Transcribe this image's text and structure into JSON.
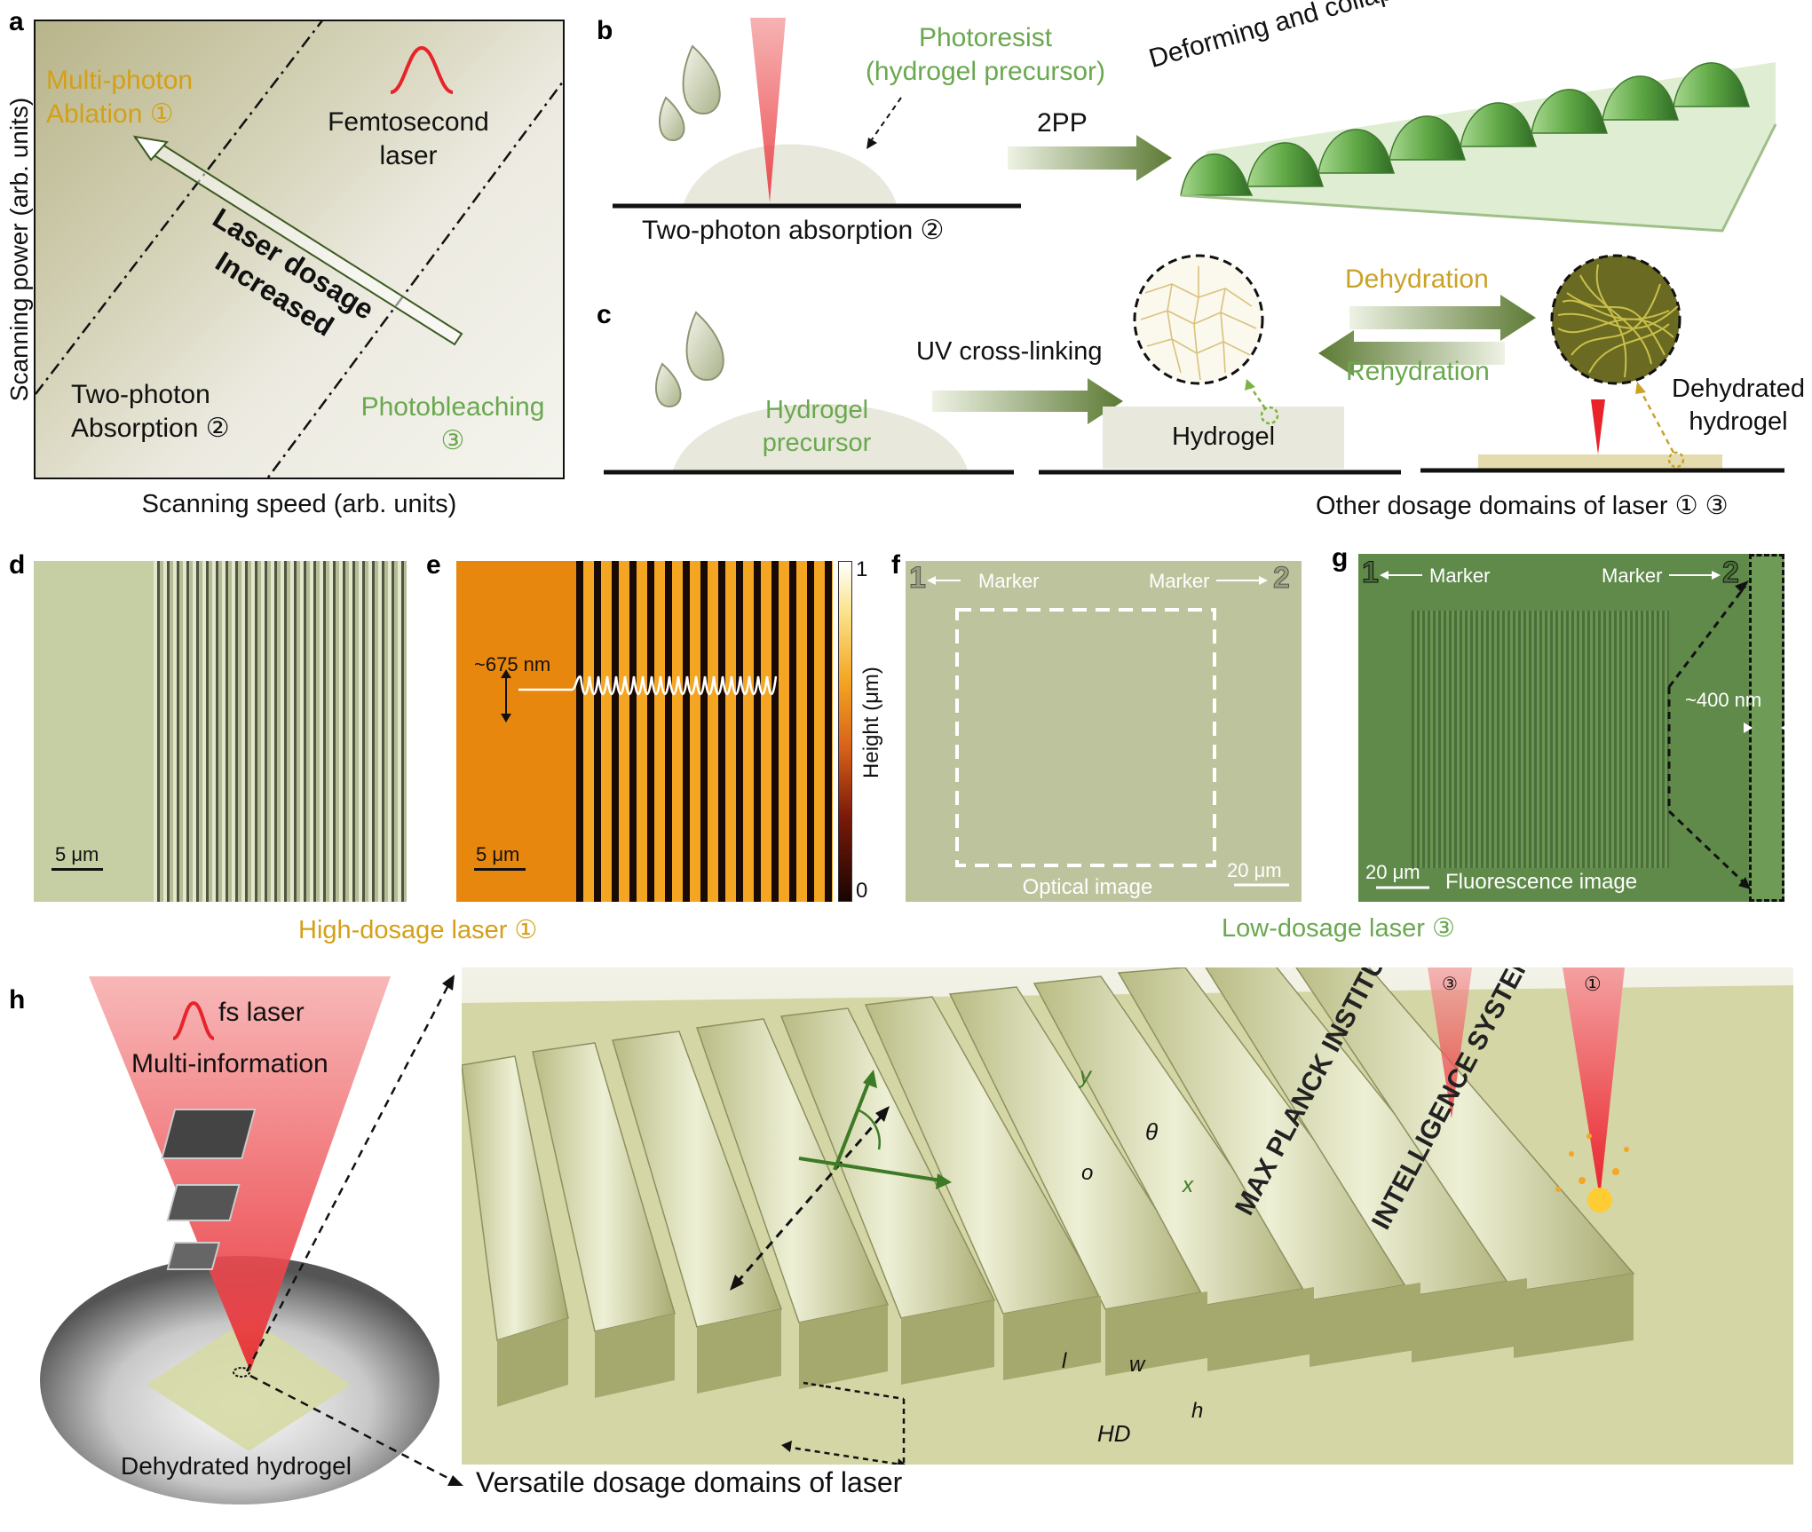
{
  "panel_letters": {
    "a": "a",
    "b": "b",
    "c": "c",
    "d": "d",
    "e": "e",
    "f": "f",
    "g": "g",
    "h": "h"
  },
  "panel_a": {
    "multi_photon_line1": "Multi-photon",
    "multi_photon_line2": "Ablation ①",
    "femtosecond_line1": "Femtosecond",
    "femtosecond_line2": "laser",
    "dosage_line1": "Laser dosage",
    "dosage_line2": "Increased",
    "two_photon_line1": "Two-photon",
    "two_photon_line2": "Absorption ②",
    "photobleaching_line1": "Photobleaching",
    "photobleaching_line2": "③",
    "ylabel": "Scanning power (arb. units)",
    "xlabel": "Scanning speed (arb. units)"
  },
  "panel_b": {
    "photoresist_line1": "Photoresist",
    "photoresist_line2": "(hydrogel precursor)",
    "arrow_label": "2PP",
    "caption": "Two-photon absorption ②",
    "collapse_label": "Deforming and collapsing"
  },
  "panel_c": {
    "uv_label": "UV cross-linking",
    "precursor_line1": "Hydrogel",
    "precursor_line2": "precursor",
    "hydrogel_label": "Hydrogel",
    "dehydration_label": "Dehydration",
    "rehydration_label": "Rehydration",
    "dehydrated_line1": "Dehydrated",
    "dehydrated_line2": "hydrogel",
    "caption": "Other dosage domains of laser ① ③"
  },
  "panel_d": {
    "scale": "5 μm"
  },
  "panel_e": {
    "height_annot": "~675 nm",
    "scale": "5 μm",
    "cbar_max": "1",
    "cbar_min": "0",
    "cbar_label": "Height (μm)"
  },
  "panel_f": {
    "marker1": "1",
    "marker2": "2",
    "marker_label": "Marker",
    "scale": "20 μm",
    "caption": "Optical image"
  },
  "panel_g": {
    "marker1": "1",
    "marker2": "2",
    "marker_label": "Marker",
    "scale": "20 μm",
    "caption": "Fluorescence image",
    "width_annot": "~400 nm"
  },
  "row_captions": {
    "high_dosage": "High-dosage laser ①",
    "low_dosage": "Low-dosage laser ③"
  },
  "panel_h": {
    "fs_label": "fs laser",
    "multi_info": "Multi-information",
    "dehydrated_label": "Dehydrated hydrogel",
    "versatile_label": "Versatile dosage domains of laser",
    "beam3": "③",
    "beam1": "①",
    "axis_y": "y",
    "axis_x": "x",
    "axis_o": "o",
    "angle": "θ",
    "dim_l": "l",
    "dim_w": "w",
    "dim_h": "h",
    "dim_hd": "HD",
    "engrave1": "MAX PLANCK INSTITUTE FOR",
    "engrave2": "INTELLIGENCE SYSTEMS"
  },
  "colors": {
    "orange_gold": "#d4a017",
    "green_text": "#6aa84f",
    "laser_red": "#e8232a"
  }
}
